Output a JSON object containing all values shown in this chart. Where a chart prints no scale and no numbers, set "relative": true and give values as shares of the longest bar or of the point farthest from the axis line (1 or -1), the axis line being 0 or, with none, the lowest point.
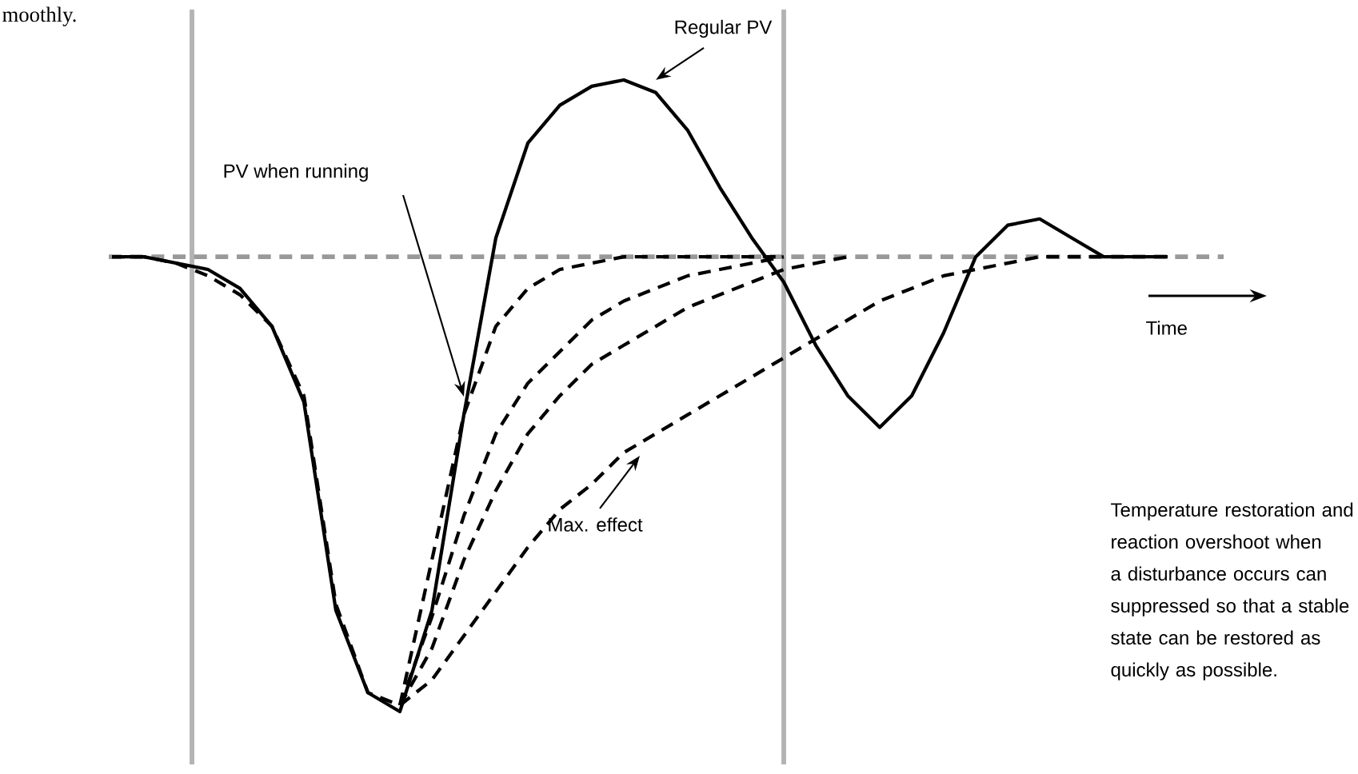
{
  "chart_data": {
    "type": "line",
    "relative": true,
    "xlabel": "Time",
    "categories": [
      null,
      null,
      null,
      null,
      null,
      null,
      null,
      null,
      null,
      null,
      null,
      null,
      null,
      null,
      null,
      null,
      null,
      null,
      null,
      null,
      null,
      null,
      null,
      null,
      null,
      null,
      null,
      null,
      null,
      null,
      null,
      null,
      null,
      null,
      null,
      null
    ],
    "series": [
      {
        "color": "#000000",
        "line_style": "solid",
        "values": [
          0.72,
          0.72,
          0.71,
          0.7,
          0.67,
          0.61,
          0.49,
          0.16,
          0.03,
          0,
          0.16,
          0.47,
          0.75,
          0.9,
          0.96,
          0.99,
          1.0,
          0.98,
          0.92,
          0.83,
          0.75,
          0.68,
          0.58,
          0.5,
          0.45,
          0.5,
          0.6,
          0.72,
          0.77,
          0.78,
          0.75,
          0.72,
          0.72,
          0.72,
          null,
          null
        ]
      },
      {
        "color": "#000000",
        "line_style": "dashed",
        "values": [
          0.72,
          0.72,
          0.71,
          0.69,
          0.66,
          0.61,
          0.5,
          0.17,
          0.03,
          0.01,
          0.24,
          0.47,
          0.61,
          0.67,
          0.7,
          0.71,
          0.72,
          0.72,
          0.72,
          0.72,
          0.72,
          0.72,
          null,
          null,
          null,
          null,
          null,
          null,
          null,
          null,
          null,
          null,
          null,
          null,
          null,
          null
        ]
      },
      {
        "color": "#000000",
        "line_style": "dashed",
        "values": [
          null,
          null,
          null,
          null,
          null,
          null,
          null,
          null,
          null,
          0.01,
          0.15,
          0.31,
          0.44,
          0.52,
          0.57,
          0.62,
          0.65,
          0.67,
          0.69,
          0.7,
          0.71,
          0.72,
          null,
          null,
          null,
          null,
          null,
          null,
          null,
          null,
          null,
          null,
          null,
          null,
          null,
          null
        ]
      },
      {
        "color": "#000000",
        "line_style": "dashed",
        "values": [
          null,
          null,
          null,
          null,
          null,
          null,
          null,
          null,
          null,
          0.01,
          0.1,
          0.24,
          0.35,
          0.44,
          0.5,
          0.55,
          0.58,
          0.61,
          0.64,
          0.66,
          0.68,
          0.7,
          0.71,
          0.72,
          null,
          null,
          null,
          null,
          null,
          null,
          null,
          null,
          null,
          null,
          null,
          null
        ]
      },
      {
        "color": "#000000",
        "line_style": "dashed",
        "values": [
          null,
          null,
          null,
          null,
          null,
          null,
          null,
          null,
          null,
          0.01,
          0.05,
          0.12,
          0.19,
          0.26,
          0.32,
          0.36,
          0.41,
          0.44,
          0.47,
          0.5,
          0.53,
          0.56,
          0.59,
          0.62,
          0.65,
          0.67,
          0.69,
          0.7,
          0.71,
          0.72,
          0.72,
          0.72,
          null,
          null,
          null,
          null
        ]
      }
    ],
    "ref_lines": [
      {
        "axis": "y",
        "value": 0.72,
        "color": "#999999",
        "line_style": "dashed"
      }
    ],
    "annotations": [
      "moothly.",
      "Regular PV",
      "PV when running",
      "Max. effect",
      "Temperature restoration and reaction overshoot when a disturbance occurs can suppressed so that a stable state can be restored as quickly as possible."
    ]
  }
}
